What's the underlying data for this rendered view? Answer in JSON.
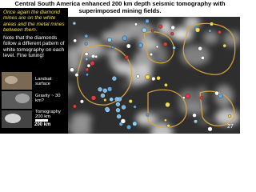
{
  "title": "Central South America enhanced 200 km depth seismic tomography with superimposed mining fields.",
  "notes": [
    "Once again the diamond mines are on the white areas and the metal mines between them.",
    "Note that the diamonds follow a different pattern of white tomography on each level. Fine tuning!"
  ],
  "thumbnails": [
    {
      "label": "Landsat surface"
    },
    {
      "label": "Gravity ~ 30 km?"
    },
    {
      "label": "Tomography 200 km"
    }
  ],
  "scale_bar": "200 km",
  "page_number": "27"
}
